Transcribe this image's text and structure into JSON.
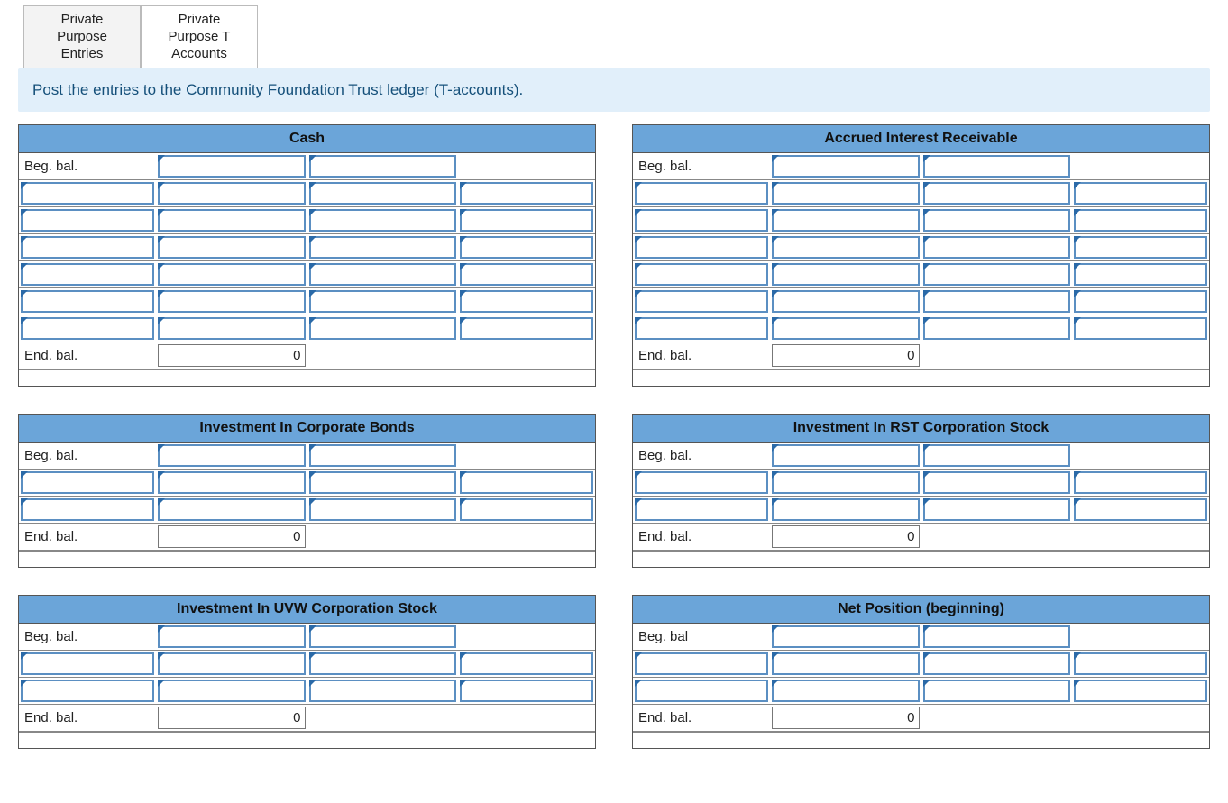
{
  "tabs": [
    {
      "label": "Private\nPurpose\nEntries",
      "active": false
    },
    {
      "label": "Private\nPurpose T\nAccounts",
      "active": true
    }
  ],
  "instruction": "Post the entries to the Community Foundation Trust ledger (T-accounts).",
  "colors": {
    "tab_inactive_bg": "#f3f3f3",
    "tab_active_bg": "#ffffff",
    "banner_bg": "#e1effa",
    "banner_text": "#15507a",
    "header_bg": "#6ba5d9",
    "input_border": "#5b8fc2",
    "input_tri": "#2b6aa8",
    "grid_border": "#555555"
  },
  "labels": {
    "beg_bal": "Beg. bal.",
    "end_bal": "End. bal.",
    "beg_bal_short": "Beg. bal"
  },
  "accounts": [
    {
      "title": "Cash",
      "beg_label_key": "beg_bal",
      "blank_rows": 6,
      "first_row_fullwidth": false,
      "end_bal_value": "0"
    },
    {
      "title": "Accrued Interest Receivable",
      "beg_label_key": "beg_bal",
      "blank_rows": 6,
      "first_row_fullwidth": false,
      "end_bal_value": "0"
    },
    {
      "title": "Investment In Corporate Bonds",
      "beg_label_key": "beg_bal",
      "blank_rows": 2,
      "first_row_fullwidth": false,
      "end_bal_value": "0"
    },
    {
      "title": "Investment In RST Corporation Stock",
      "beg_label_key": "beg_bal",
      "blank_rows": 2,
      "first_row_fullwidth": false,
      "end_bal_value": "0"
    },
    {
      "title": "Investment In UVW Corporation Stock",
      "beg_label_key": "beg_bal",
      "blank_rows": 2,
      "first_row_fullwidth": false,
      "end_bal_value": "0"
    },
    {
      "title": "Net Position (beginning)",
      "beg_label_key": "beg_bal_short",
      "blank_rows": 2,
      "first_row_fullwidth": false,
      "end_bal_value": "0"
    }
  ]
}
